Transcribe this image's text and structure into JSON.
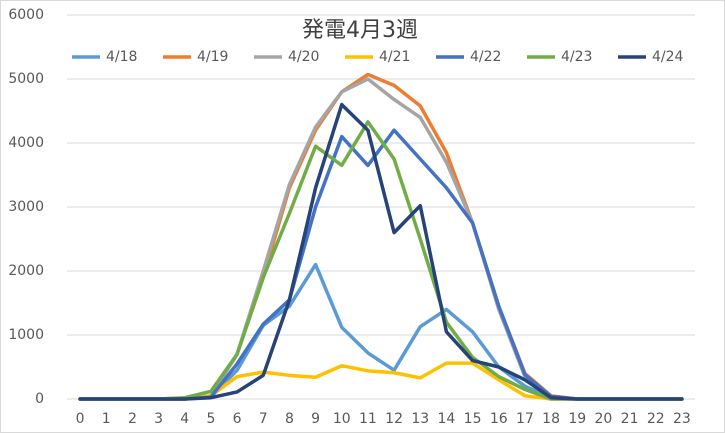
{
  "chart_data": {
    "type": "line",
    "title": "発電4月3週",
    "categories": [
      "0",
      "1",
      "2",
      "3",
      "4",
      "5",
      "6",
      "7",
      "8",
      "9",
      "10",
      "11",
      "12",
      "13",
      "14",
      "15",
      "16",
      "17",
      "18",
      "19",
      "20",
      "21",
      "22",
      "23"
    ],
    "ylim": [
      0,
      6000
    ],
    "yticks": [
      0,
      1000,
      2000,
      3000,
      4000,
      5000,
      6000
    ],
    "grid": true,
    "series": [
      {
        "name": "4/18",
        "color": "#5B9BD5",
        "values": [
          0,
          0,
          0,
          0,
          0,
          30,
          450,
          1150,
          1450,
          2100,
          1120,
          720,
          450,
          1130,
          1400,
          1050,
          500,
          200,
          20,
          0,
          0,
          0,
          0,
          0
        ]
      },
      {
        "name": "4/19",
        "color": "#ED7D31",
        "values": [
          0,
          0,
          0,
          0,
          0,
          50,
          700,
          1900,
          3300,
          4200,
          4800,
          5070,
          4900,
          4580,
          3850,
          2750,
          1450,
          400,
          50,
          0,
          0,
          0,
          0,
          0
        ]
      },
      {
        "name": "4/20",
        "color": "#A5A5A5",
        "values": [
          0,
          0,
          0,
          0,
          0,
          50,
          700,
          2000,
          3350,
          4250,
          4800,
          5000,
          4680,
          4400,
          3700,
          2750,
          1400,
          350,
          30,
          0,
          0,
          0,
          0,
          0
        ]
      },
      {
        "name": "4/21",
        "color": "#FFC000",
        "values": [
          0,
          0,
          0,
          0,
          0,
          50,
          350,
          420,
          370,
          340,
          520,
          440,
          410,
          330,
          560,
          560,
          300,
          50,
          0,
          0,
          0,
          0,
          0,
          0
        ]
      },
      {
        "name": "4/22",
        "color": "#4472C4",
        "values": [
          0,
          0,
          0,
          0,
          0,
          30,
          550,
          1170,
          1550,
          3000,
          4100,
          3650,
          4200,
          3750,
          3300,
          2750,
          1450,
          380,
          40,
          0,
          0,
          0,
          0,
          0
        ]
      },
      {
        "name": "4/23",
        "color": "#70AD47",
        "values": [
          0,
          0,
          0,
          0,
          20,
          120,
          700,
          1900,
          2900,
          3950,
          3650,
          4330,
          3750,
          2500,
          1200,
          650,
          350,
          150,
          0,
          0,
          0,
          0,
          0,
          0
        ]
      },
      {
        "name": "4/24",
        "color": "#264478",
        "values": [
          0,
          0,
          0,
          0,
          0,
          20,
          110,
          370,
          1550,
          3300,
          4600,
          4200,
          2600,
          3020,
          1050,
          600,
          500,
          300,
          20,
          0,
          0,
          0,
          0,
          0
        ]
      }
    ]
  }
}
